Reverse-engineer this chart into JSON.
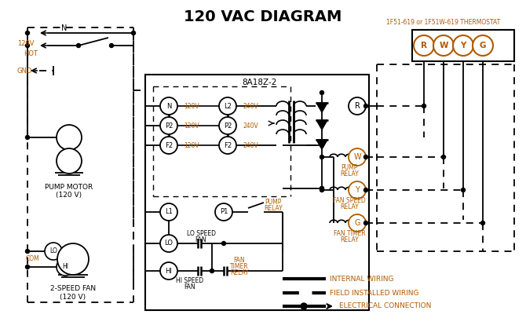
{
  "title": "120 VAC DIAGRAM",
  "title_fontsize": 14,
  "bg_color": "#ffffff",
  "line_color": "#000000",
  "orange_color": "#b05a00",
  "thermostat_label": "1F51-619 or 1F51W-619 THERMOSTAT",
  "box_label": "8A18Z-2",
  "legend": [
    {
      "label": "INTERNAL WIRING",
      "style": "solid"
    },
    {
      "label": "FIELD INSTALLED WIRING",
      "style": "dashed"
    },
    {
      "label": "ELECTRICAL CONNECTION",
      "style": "dot_arrow"
    }
  ]
}
